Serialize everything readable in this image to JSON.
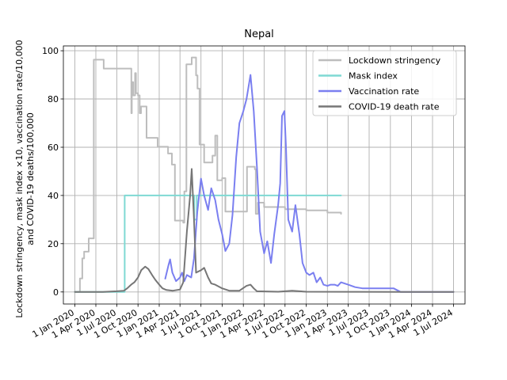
{
  "chart_data": {
    "type": "line",
    "title": "Nepal",
    "xlabel": "",
    "ylabel_lines": [
      "Lockdown stringency, mask index ×10, vaccination rate/10,000",
      "and COVID-19 deaths/100,000"
    ],
    "xlim": [
      "2019-11-12",
      "2024-08-20"
    ],
    "ylim": [
      -5,
      102
    ],
    "grid": true,
    "legend_position": "top-right",
    "x_ticks": [
      {
        "date": "2020-01-01",
        "label": "1 Jan 2020"
      },
      {
        "date": "2020-04-01",
        "label": "1 Apr 2020"
      },
      {
        "date": "2020-07-01",
        "label": "1 Jul 2020"
      },
      {
        "date": "2020-10-01",
        "label": "1 Oct 2020"
      },
      {
        "date": "2021-01-01",
        "label": "1 Jan 2021"
      },
      {
        "date": "2021-04-01",
        "label": "1 Apr 2021"
      },
      {
        "date": "2021-07-01",
        "label": "1 Jul 2021"
      },
      {
        "date": "2021-10-01",
        "label": "1 Oct 2021"
      },
      {
        "date": "2022-01-01",
        "label": "1 Jan 2022"
      },
      {
        "date": "2022-04-01",
        "label": "1 Apr 2022"
      },
      {
        "date": "2022-07-01",
        "label": "1 Jul 2022"
      },
      {
        "date": "2022-10-01",
        "label": "1 Oct 2022"
      },
      {
        "date": "2023-01-01",
        "label": "1 Jan 2023"
      },
      {
        "date": "2023-04-01",
        "label": "1 Apr 2023"
      },
      {
        "date": "2023-07-01",
        "label": "1 Jul 2023"
      },
      {
        "date": "2023-10-01",
        "label": "1 Oct 2023"
      },
      {
        "date": "2024-01-01",
        "label": "1 Jan 2024"
      },
      {
        "date": "2024-04-01",
        "label": "1 Apr 2024"
      },
      {
        "date": "2024-07-01",
        "label": "1 Jul 2024"
      }
    ],
    "y_ticks": [
      0,
      20,
      40,
      60,
      80,
      100
    ],
    "series": [
      {
        "name": "Lockdown stringency",
        "color": "#bdbdbd",
        "step": true,
        "points": [
          [
            "2020-01-01",
            0
          ],
          [
            "2020-01-22",
            0
          ],
          [
            "2020-01-23",
            5.6
          ],
          [
            "2020-02-02",
            13.9
          ],
          [
            "2020-02-10",
            16.7
          ],
          [
            "2020-03-01",
            22.2
          ],
          [
            "2020-03-15",
            22.2
          ],
          [
            "2020-03-23",
            96.3
          ],
          [
            "2020-05-01",
            96.3
          ],
          [
            "2020-05-05",
            92.6
          ],
          [
            "2020-08-31",
            92.6
          ],
          [
            "2020-09-02",
            74.1
          ],
          [
            "2020-09-04",
            87.0
          ],
          [
            "2020-09-10",
            81.5
          ],
          [
            "2020-09-18",
            90.7
          ],
          [
            "2020-09-22",
            82.4
          ],
          [
            "2020-10-01",
            81.5
          ],
          [
            "2020-10-08",
            74.1
          ],
          [
            "2020-10-14",
            76.9
          ],
          [
            "2020-11-07",
            63.9
          ],
          [
            "2020-12-25",
            60.2
          ],
          [
            "2021-02-08",
            57.4
          ],
          [
            "2021-02-25",
            52.8
          ],
          [
            "2021-03-10",
            29.6
          ],
          [
            "2021-04-15",
            28.7
          ],
          [
            "2021-04-20",
            41.7
          ],
          [
            "2021-04-29",
            94.4
          ],
          [
            "2021-05-15",
            94.4
          ],
          [
            "2021-05-22",
            97.2
          ],
          [
            "2021-06-10",
            89.8
          ],
          [
            "2021-06-16",
            84.3
          ],
          [
            "2021-06-25",
            61.1
          ],
          [
            "2021-07-15",
            53.7
          ],
          [
            "2021-08-20",
            56.5
          ],
          [
            "2021-09-01",
            64.8
          ],
          [
            "2021-09-10",
            46.3
          ],
          [
            "2021-10-01",
            47.2
          ],
          [
            "2021-10-15",
            33.3
          ],
          [
            "2022-01-10",
            33.3
          ],
          [
            "2022-01-17",
            51.9
          ],
          [
            "2022-02-20",
            50.9
          ],
          [
            "2022-02-24",
            32.4
          ],
          [
            "2022-03-05",
            37.0
          ],
          [
            "2022-04-01",
            35.2
          ],
          [
            "2022-07-01",
            34.3
          ],
          [
            "2022-10-01",
            33.8
          ],
          [
            "2023-01-01",
            32.9
          ],
          [
            "2023-03-01",
            32.4
          ]
        ]
      },
      {
        "name": "Mask index",
        "color": "#7fd9d3",
        "step": true,
        "points": [
          [
            "2020-01-01",
            0
          ],
          [
            "2020-08-01",
            0
          ],
          [
            "2020-08-04",
            40
          ],
          [
            "2021-06-01",
            40
          ],
          [
            "2021-06-02",
            30
          ],
          [
            "2021-06-12",
            30
          ],
          [
            "2021-06-13",
            40
          ],
          [
            "2023-03-01",
            40
          ]
        ]
      },
      {
        "name": "Vaccination rate",
        "color": "#7a7ff0",
        "step": false,
        "points": [
          [
            "2021-01-27",
            5.5
          ],
          [
            "2021-02-10",
            11
          ],
          [
            "2021-02-17",
            13.5
          ],
          [
            "2021-02-27",
            8
          ],
          [
            "2021-03-15",
            4.5
          ],
          [
            "2021-04-01",
            6
          ],
          [
            "2021-04-10",
            8
          ],
          [
            "2021-04-20",
            4.5
          ],
          [
            "2021-05-01",
            7
          ],
          [
            "2021-05-20",
            6
          ],
          [
            "2021-06-01",
            14
          ],
          [
            "2021-06-15",
            33
          ],
          [
            "2021-07-01",
            47
          ],
          [
            "2021-07-15",
            40
          ],
          [
            "2021-08-01",
            34
          ],
          [
            "2021-08-15",
            43
          ],
          [
            "2021-09-01",
            38
          ],
          [
            "2021-09-15",
            30
          ],
          [
            "2021-10-01",
            24
          ],
          [
            "2021-10-15",
            17
          ],
          [
            "2021-11-01",
            20
          ],
          [
            "2021-11-15",
            32
          ],
          [
            "2021-12-01",
            56
          ],
          [
            "2021-12-15",
            70
          ],
          [
            "2022-01-01",
            75
          ],
          [
            "2022-01-15",
            80
          ],
          [
            "2022-02-01",
            90
          ],
          [
            "2022-02-15",
            75
          ],
          [
            "2022-03-01",
            52
          ],
          [
            "2022-03-15",
            25
          ],
          [
            "2022-04-01",
            16
          ],
          [
            "2022-04-15",
            21
          ],
          [
            "2022-05-01",
            12
          ],
          [
            "2022-05-15",
            24
          ],
          [
            "2022-06-01",
            36
          ],
          [
            "2022-06-10",
            45
          ],
          [
            "2022-06-18",
            73
          ],
          [
            "2022-06-28",
            75
          ],
          [
            "2022-07-05",
            60
          ],
          [
            "2022-07-15",
            30
          ],
          [
            "2022-08-01",
            25
          ],
          [
            "2022-08-15",
            36
          ],
          [
            "2022-09-01",
            24
          ],
          [
            "2022-09-15",
            12
          ],
          [
            "2022-10-01",
            8
          ],
          [
            "2022-10-15",
            7
          ],
          [
            "2022-11-01",
            8
          ],
          [
            "2022-11-15",
            4
          ],
          [
            "2022-12-01",
            6
          ],
          [
            "2022-12-15",
            3
          ],
          [
            "2023-01-01",
            2.5
          ],
          [
            "2023-01-15",
            3
          ],
          [
            "2023-02-01",
            3
          ],
          [
            "2023-02-15",
            2.5
          ],
          [
            "2023-03-01",
            4
          ],
          [
            "2023-04-01",
            3
          ],
          [
            "2023-05-01",
            2
          ],
          [
            "2023-06-01",
            1.5
          ],
          [
            "2023-08-01",
            1.5
          ],
          [
            "2023-10-15",
            1.5
          ],
          [
            "2023-11-15",
            0
          ],
          [
            "2024-07-01",
            0
          ]
        ]
      },
      {
        "name": "COVID-19 death rate",
        "color": "#767676",
        "step": false,
        "points": [
          [
            "2020-01-01",
            0
          ],
          [
            "2020-05-01",
            0
          ],
          [
            "2020-07-01",
            0.3
          ],
          [
            "2020-08-01",
            0.5
          ],
          [
            "2020-08-15",
            1.5
          ],
          [
            "2020-09-01",
            3
          ],
          [
            "2020-09-15",
            4
          ],
          [
            "2020-10-01",
            6
          ],
          [
            "2020-10-15",
            9
          ],
          [
            "2020-11-01",
            10.5
          ],
          [
            "2020-11-15",
            9.5
          ],
          [
            "2020-12-01",
            7
          ],
          [
            "2020-12-15",
            5
          ],
          [
            "2021-01-01",
            3
          ],
          [
            "2021-01-15",
            1.5
          ],
          [
            "2021-02-01",
            0.8
          ],
          [
            "2021-03-01",
            0.5
          ],
          [
            "2021-04-01",
            1
          ],
          [
            "2021-04-15",
            4
          ],
          [
            "2021-05-01",
            25
          ],
          [
            "2021-05-15",
            40
          ],
          [
            "2021-05-22",
            51
          ],
          [
            "2021-06-01",
            30
          ],
          [
            "2021-06-10",
            8
          ],
          [
            "2021-07-01",
            9
          ],
          [
            "2021-07-15",
            10
          ],
          [
            "2021-08-01",
            6
          ],
          [
            "2021-08-15",
            3.5
          ],
          [
            "2021-09-01",
            3
          ],
          [
            "2021-10-01",
            1.5
          ],
          [
            "2021-11-01",
            0.5
          ],
          [
            "2021-12-15",
            0.5
          ],
          [
            "2022-01-15",
            2.5
          ],
          [
            "2022-02-01",
            3
          ],
          [
            "2022-02-15",
            1.5
          ],
          [
            "2022-03-01",
            0.3
          ],
          [
            "2022-06-01",
            0.1
          ],
          [
            "2022-08-01",
            0.5
          ],
          [
            "2022-10-01",
            0.1
          ],
          [
            "2024-07-01",
            0
          ]
        ]
      }
    ]
  }
}
